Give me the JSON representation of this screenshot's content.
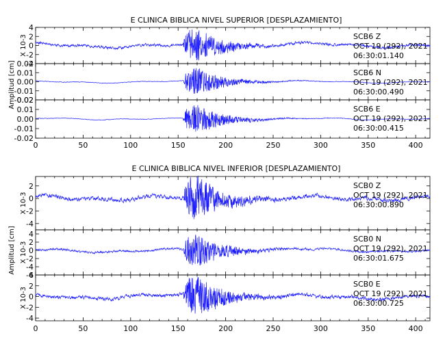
{
  "colors": {
    "trace": "#1c1cff",
    "axis": "#000000"
  },
  "chart_data": [
    {
      "type": "line",
      "title": "E CLINICA BIBLICA NIVEL SUPERIOR [DESPLAZAMIENTO]",
      "ylabel": "Amplitud [cm]",
      "xlim": [
        0,
        415
      ],
      "xticks": [
        "0",
        "50",
        "100",
        "150",
        "200",
        "250",
        "300",
        "350",
        "400"
      ],
      "panels": [
        {
          "ylim": [
            -4,
            4
          ],
          "yticks": [
            "-4",
            "-2",
            "0",
            "2",
            "4"
          ],
          "yticks_at": [
            -4,
            -2,
            0,
            2,
            4
          ],
          "multiplier": "X 10-3",
          "amp_noise": 0.5,
          "amp_event": 3.8,
          "drift": 0.35,
          "seed": 11,
          "annotation": {
            "station": "SCB6 Z",
            "date": "OCT 19 (292), 2021",
            "time": "06:30:01.140"
          }
        },
        {
          "ylim": [
            -0.02,
            0.02
          ],
          "yticks": [
            "-0.02",
            "-0.01",
            "0.00",
            "0.01",
            "0.02"
          ],
          "yticks_at": [
            -0.02,
            -0.01,
            0,
            0.01,
            0.02
          ],
          "multiplier": "",
          "amp_noise": 0.0005,
          "amp_event": 0.016,
          "drift": 0.0008,
          "seed": 23,
          "annotation": {
            "station": "SCB6 N",
            "date": "OCT 19 (292), 2021",
            "time": "06:30:00.490"
          }
        },
        {
          "ylim": [
            -0.02,
            0.02
          ],
          "yticks": [
            "-0.02",
            "-0.01",
            "0.00",
            "0.01",
            "0.02"
          ],
          "yticks_at": [
            -0.02,
            -0.01,
            0,
            0.01,
            0.02
          ],
          "multiplier": "",
          "amp_noise": 0.0005,
          "amp_event": 0.016,
          "drift": 0.0008,
          "seed": 37,
          "annotation": {
            "station": "SCB6 E",
            "date": "OCT 19 (292), 2021",
            "time": "06:30:00.415"
          }
        }
      ]
    },
    {
      "type": "line",
      "title": "E CLINICA BIBLICA NIVEL INFERIOR [DESPLAZAMIENTO]",
      "ylabel": "Amplitud [cm]",
      "xlim": [
        0,
        415
      ],
      "xticks": [
        "0",
        "50",
        "100",
        "150",
        "200",
        "250",
        "300",
        "350",
        "400"
      ],
      "panels": [
        {
          "ylim": [
            -5,
            3.5
          ],
          "yticks": [
            "-4",
            "-2",
            "0",
            "2"
          ],
          "yticks_at": [
            -4,
            -2,
            0,
            2
          ],
          "multiplier": "X 10-3",
          "amp_noise": 0.55,
          "amp_event": 3.6,
          "drift": 0.3,
          "seed": 53,
          "annotation": {
            "station": "SCB0 Z",
            "date": "OCT 19 (292), 2021",
            "time": "06:30:00.890"
          }
        },
        {
          "ylim": [
            -6,
            5
          ],
          "yticks": [
            "-6",
            "-4",
            "-2",
            "0",
            "2",
            "4"
          ],
          "yticks_at": [
            -6,
            -4,
            -2,
            0,
            2,
            4
          ],
          "multiplier": "X 10-3",
          "amp_noise": 0.45,
          "amp_event": 4.2,
          "drift": 0.3,
          "seed": 71,
          "annotation": {
            "station": "SCB0 N",
            "date": "OCT 19 (292), 2021",
            "time": "06:30:01.675"
          }
        },
        {
          "ylim": [
            -4.5,
            4
          ],
          "yticks": [
            "-4",
            "-2",
            "0",
            "2",
            "4"
          ],
          "yticks_at": [
            -4,
            -2,
            0,
            2,
            4
          ],
          "multiplier": "X 10-3",
          "amp_noise": 0.55,
          "amp_event": 3.8,
          "drift": 0.3,
          "seed": 89,
          "annotation": {
            "station": "SCB0 E",
            "date": "OCT 19 (292), 2021",
            "time": "06:30:00.725"
          }
        }
      ]
    }
  ]
}
